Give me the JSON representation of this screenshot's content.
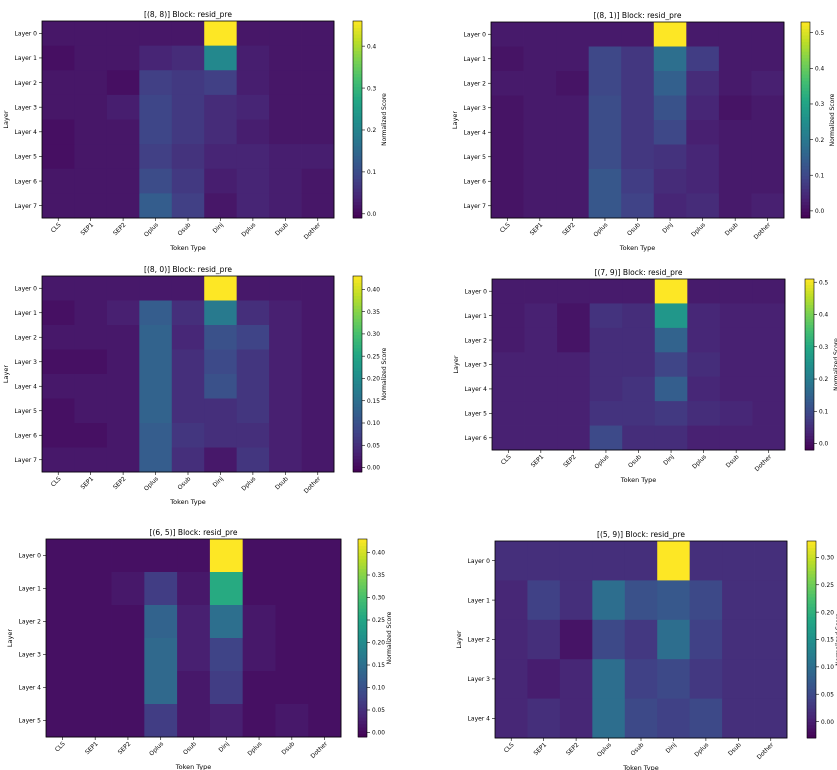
{
  "figure": {
    "domain": "heatmap grid"
  },
  "chart_data": [
    {
      "type": "heatmap",
      "title": "[(8, 8)] Block: resid_pre",
      "xlabel": "Token Type",
      "ylabel": "Layer",
      "x_categories": [
        "CLS",
        "SEP1",
        "SEP2",
        "Oplus",
        "Osub",
        "Dinj",
        "Dplus",
        "Dsub",
        "Dother"
      ],
      "y_categories": [
        "Layer 0",
        "Layer 1",
        "Layer 2",
        "Layer 3",
        "Layer 4",
        "Layer 5",
        "Layer 6",
        "Layer 7"
      ],
      "colorbar": {
        "label": "Normalized Score",
        "range": [
          -0.01,
          0.46
        ],
        "ticks": [
          0.0,
          0.1,
          0.2,
          0.3,
          0.4
        ],
        "tick_labels": [
          "0.0",
          "0.1",
          "0.2",
          "0.3",
          "0.4"
        ],
        "colormap": "viridis"
      },
      "values": [
        [
          0.02,
          0.02,
          0.02,
          0.02,
          0.02,
          0.46,
          0.02,
          0.02,
          0.02
        ],
        [
          0.01,
          0.02,
          0.02,
          0.04,
          0.05,
          0.21,
          0.03,
          0.02,
          0.02
        ],
        [
          0.02,
          0.02,
          0.01,
          0.08,
          0.07,
          0.08,
          0.03,
          0.02,
          0.02
        ],
        [
          0.02,
          0.02,
          0.03,
          0.09,
          0.07,
          0.05,
          0.04,
          0.02,
          0.02
        ],
        [
          0.01,
          0.02,
          0.02,
          0.09,
          0.07,
          0.05,
          0.03,
          0.02,
          0.02
        ],
        [
          0.01,
          0.02,
          0.02,
          0.08,
          0.06,
          0.04,
          0.04,
          0.03,
          0.03
        ],
        [
          0.02,
          0.02,
          0.02,
          0.1,
          0.07,
          0.03,
          0.04,
          0.03,
          0.02
        ],
        [
          0.02,
          0.02,
          0.02,
          0.13,
          0.08,
          0.02,
          0.04,
          0.03,
          0.02
        ]
      ]
    },
    {
      "type": "heatmap",
      "title": "[(8, 1)] Block: resid_pre",
      "xlabel": "Token Type",
      "ylabel": "Layer",
      "x_categories": [
        "CLS",
        "SEP1",
        "SEP2",
        "Oplus",
        "Osub",
        "Dinj",
        "Dplus",
        "Dsub",
        "Dother"
      ],
      "y_categories": [
        "Layer 0",
        "Layer 1",
        "Layer 2",
        "Layer 3",
        "Layer 4",
        "Layer 5",
        "Layer 6",
        "Layer 7"
      ],
      "colorbar": {
        "label": "Normalized Score",
        "range": [
          -0.02,
          0.53
        ],
        "ticks": [
          0.0,
          0.1,
          0.2,
          0.3,
          0.4,
          0.5
        ],
        "tick_labels": [
          "0.0",
          "0.1",
          "0.2",
          "0.3",
          "0.4",
          "0.5"
        ],
        "colormap": "viridis"
      },
      "values": [
        [
          0.02,
          0.02,
          0.02,
          0.02,
          0.02,
          0.53,
          0.02,
          0.02,
          0.02
        ],
        [
          0.01,
          0.02,
          0.02,
          0.1,
          0.07,
          0.18,
          0.08,
          0.02,
          0.02
        ],
        [
          0.02,
          0.02,
          0.01,
          0.1,
          0.07,
          0.15,
          0.05,
          0.02,
          0.03
        ],
        [
          0.01,
          0.02,
          0.02,
          0.11,
          0.07,
          0.12,
          0.04,
          0.01,
          0.02
        ],
        [
          0.01,
          0.02,
          0.02,
          0.11,
          0.07,
          0.1,
          0.03,
          0.02,
          0.02
        ],
        [
          0.01,
          0.02,
          0.02,
          0.11,
          0.07,
          0.06,
          0.04,
          0.02,
          0.02
        ],
        [
          0.01,
          0.02,
          0.02,
          0.13,
          0.08,
          0.05,
          0.04,
          0.02,
          0.02
        ],
        [
          0.01,
          0.02,
          0.02,
          0.13,
          0.09,
          0.04,
          0.05,
          0.02,
          0.03
        ]
      ]
    },
    {
      "type": "heatmap",
      "title": "[(8, 0)] Block: resid_pre",
      "xlabel": "Token Type",
      "ylabel": "Layer",
      "x_categories": [
        "CLS",
        "SEP1",
        "SEP2",
        "Oplus",
        "Osub",
        "Dinj",
        "Dplus",
        "Dsub",
        "Dother"
      ],
      "y_categories": [
        "Layer 0",
        "Layer 1",
        "Layer 2",
        "Layer 3",
        "Layer 4",
        "Layer 5",
        "Layer 6",
        "Layer 7"
      ],
      "colorbar": {
        "label": "Normalized Score",
        "range": [
          -0.01,
          0.43
        ],
        "ticks": [
          0.0,
          0.05,
          0.1,
          0.15,
          0.2,
          0.25,
          0.3,
          0.35,
          0.4
        ],
        "tick_labels": [
          "0.00",
          "0.05",
          "0.10",
          "0.15",
          "0.20",
          "0.25",
          "0.30",
          "0.35",
          "0.40"
        ],
        "colormap": "viridis"
      },
      "values": [
        [
          0.02,
          0.02,
          0.02,
          0.02,
          0.02,
          0.43,
          0.02,
          0.02,
          0.02
        ],
        [
          0.01,
          0.02,
          0.03,
          0.12,
          0.05,
          0.17,
          0.05,
          0.03,
          0.02
        ],
        [
          0.02,
          0.02,
          0.02,
          0.13,
          0.04,
          0.1,
          0.08,
          0.03,
          0.02
        ],
        [
          0.01,
          0.01,
          0.02,
          0.13,
          0.05,
          0.09,
          0.06,
          0.03,
          0.02
        ],
        [
          0.02,
          0.02,
          0.02,
          0.13,
          0.05,
          0.1,
          0.06,
          0.03,
          0.02
        ],
        [
          0.01,
          0.02,
          0.02,
          0.13,
          0.05,
          0.05,
          0.06,
          0.03,
          0.02
        ],
        [
          0.01,
          0.01,
          0.02,
          0.12,
          0.06,
          0.05,
          0.05,
          0.03,
          0.02
        ],
        [
          0.02,
          0.02,
          0.02,
          0.12,
          0.05,
          0.02,
          0.06,
          0.03,
          0.02
        ]
      ]
    },
    {
      "type": "heatmap",
      "title": "[(7, 9)] Block: resid_pre",
      "xlabel": "Token Type",
      "ylabel": "Layer",
      "x_categories": [
        "CLS",
        "SEP1",
        "SEP2",
        "Oplus",
        "Osub",
        "Dinj",
        "Dplus",
        "Dsub",
        "Dother"
      ],
      "y_categories": [
        "Layer 0",
        "Layer 1",
        "Layer 2",
        "Layer 3",
        "Layer 4",
        "Layer 5",
        "Layer 6"
      ],
      "colorbar": {
        "label": "Normalized Score",
        "range": [
          -0.02,
          0.51
        ],
        "ticks": [
          0.0,
          0.1,
          0.2,
          0.3,
          0.4,
          0.5
        ],
        "tick_labels": [
          "0.0",
          "0.1",
          "0.2",
          "0.3",
          "0.4",
          "0.5"
        ],
        "colormap": "viridis"
      },
      "values": [
        [
          0.02,
          0.02,
          0.02,
          0.02,
          0.02,
          0.51,
          0.02,
          0.02,
          0.02
        ],
        [
          0.02,
          0.03,
          0.01,
          0.06,
          0.05,
          0.26,
          0.04,
          0.03,
          0.03
        ],
        [
          0.02,
          0.03,
          0.01,
          0.05,
          0.05,
          0.15,
          0.04,
          0.03,
          0.03
        ],
        [
          0.03,
          0.03,
          0.03,
          0.05,
          0.05,
          0.09,
          0.05,
          0.03,
          0.03
        ],
        [
          0.03,
          0.03,
          0.03,
          0.05,
          0.06,
          0.14,
          0.04,
          0.03,
          0.03
        ],
        [
          0.03,
          0.03,
          0.03,
          0.06,
          0.06,
          0.07,
          0.05,
          0.04,
          0.03
        ],
        [
          0.03,
          0.03,
          0.03,
          0.1,
          0.05,
          0.05,
          0.03,
          0.03,
          0.03
        ]
      ]
    },
    {
      "type": "heatmap",
      "title": "[(6, 5)] Block: resid_pre",
      "xlabel": "Token Type",
      "ylabel": "Layer",
      "x_categories": [
        "CLS",
        "SEP1",
        "SEP2",
        "Oplus",
        "Osub",
        "Dinj",
        "Dplus",
        "Dsub",
        "Dother"
      ],
      "y_categories": [
        "Layer 0",
        "Layer 1",
        "Layer 2",
        "Layer 3",
        "Layer 4",
        "Layer 5"
      ],
      "colorbar": {
        "label": "Normalized Score",
        "range": [
          -0.01,
          0.43
        ],
        "ticks": [
          0.0,
          0.05,
          0.1,
          0.15,
          0.2,
          0.25,
          0.3,
          0.35,
          0.4
        ],
        "tick_labels": [
          "0.00",
          "0.05",
          "0.10",
          "0.15",
          "0.20",
          "0.25",
          "0.30",
          "0.35",
          "0.40"
        ],
        "colormap": "viridis"
      },
      "values": [
        [
          0.01,
          0.01,
          0.01,
          0.01,
          0.01,
          0.43,
          0.01,
          0.01,
          0.01
        ],
        [
          0.01,
          0.01,
          0.02,
          0.07,
          0.02,
          0.26,
          0.01,
          0.01,
          0.01
        ],
        [
          0.01,
          0.01,
          0.01,
          0.13,
          0.03,
          0.15,
          0.02,
          0.01,
          0.01
        ],
        [
          0.01,
          0.01,
          0.01,
          0.14,
          0.03,
          0.08,
          0.02,
          0.01,
          0.01
        ],
        [
          0.01,
          0.01,
          0.01,
          0.14,
          0.02,
          0.07,
          0.01,
          0.01,
          0.01
        ],
        [
          0.01,
          0.01,
          0.01,
          0.07,
          0.02,
          0.03,
          0.01,
          0.02,
          0.01
        ]
      ]
    },
    {
      "type": "heatmap",
      "title": "[(5, 9)] Block: resid_pre",
      "xlabel": "Token Type",
      "ylabel": "Layer",
      "x_categories": [
        "CLS",
        "SEP1",
        "SEP2",
        "Oplus",
        "Osub",
        "Dinj",
        "Dplus",
        "Dsub",
        "Dother"
      ],
      "y_categories": [
        "Layer 0",
        "Layer 1",
        "Layer 2",
        "Layer 3",
        "Layer 4"
      ],
      "colorbar": {
        "label": "Normalized Score",
        "range": [
          -0.03,
          0.33
        ],
        "ticks": [
          0.0,
          0.05,
          0.1,
          0.15,
          0.2,
          0.25,
          0.3
        ],
        "tick_labels": [
          "0.00",
          "0.05",
          "0.10",
          "0.15",
          "0.20",
          "0.25",
          "0.30"
        ],
        "colormap": "viridis"
      },
      "values": [
        [
          0.02,
          0.02,
          0.02,
          0.02,
          0.02,
          0.33,
          0.02,
          0.02,
          0.02
        ],
        [
          0.01,
          0.04,
          0.02,
          0.1,
          0.06,
          0.07,
          0.05,
          0.02,
          0.02
        ],
        [
          0.01,
          0.02,
          -0.01,
          0.05,
          0.03,
          0.1,
          0.04,
          0.02,
          0.02
        ],
        [
          0.01,
          0.0,
          0.01,
          0.1,
          0.04,
          0.05,
          0.03,
          0.02,
          0.02
        ],
        [
          0.01,
          0.02,
          0.01,
          0.1,
          0.05,
          0.04,
          0.05,
          0.02,
          0.02
        ]
      ]
    }
  ]
}
